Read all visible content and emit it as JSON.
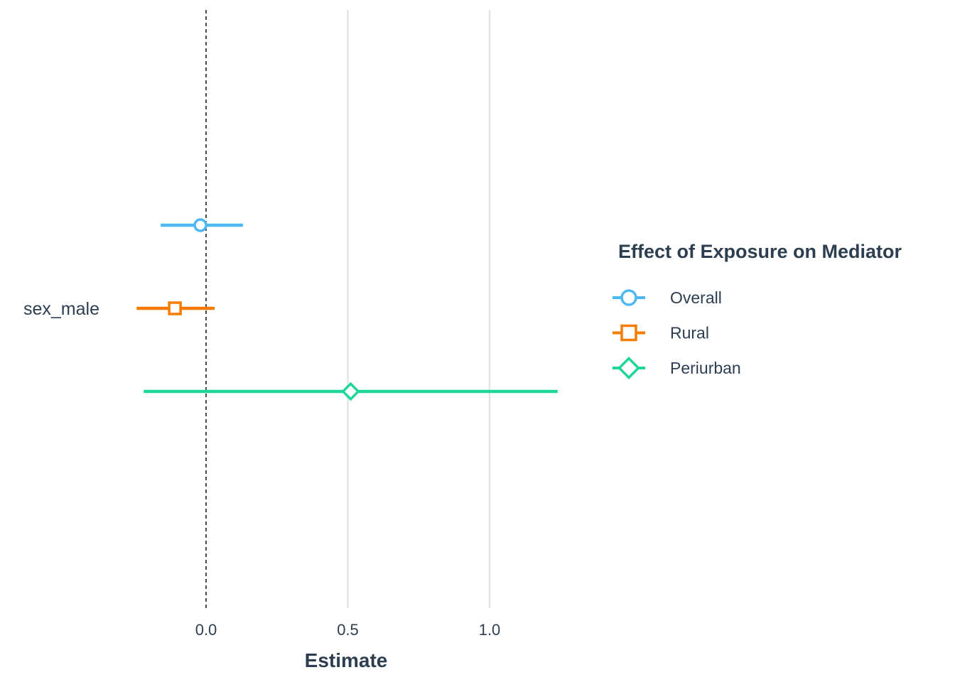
{
  "chart_data": {
    "type": "forest",
    "categories": [
      "sex_male"
    ],
    "x_ticks": [
      0.0,
      0.5,
      1.0
    ],
    "x_tick_labels": [
      "0.0",
      "0.5",
      "1.0"
    ],
    "xlim": [
      -0.65,
      1.36
    ],
    "xlabel": "Estimate",
    "ylabel": "",
    "reference_line": 0,
    "grid": "vertical major",
    "legend": {
      "title": "Effect of Exposure on Mediator",
      "position": "right"
    },
    "series": [
      {
        "name": "Overall",
        "color": "#4db8f0",
        "shape": "circle",
        "estimate": -0.02,
        "lower": -0.16,
        "upper": 0.13
      },
      {
        "name": "Rural",
        "color": "#f57c00",
        "shape": "square",
        "estimate": -0.11,
        "lower": -0.245,
        "upper": 0.03
      },
      {
        "name": "Periurban",
        "color": "#1fd69a",
        "shape": "diamond",
        "estimate": 0.51,
        "lower": -0.22,
        "upper": 1.24
      }
    ]
  }
}
